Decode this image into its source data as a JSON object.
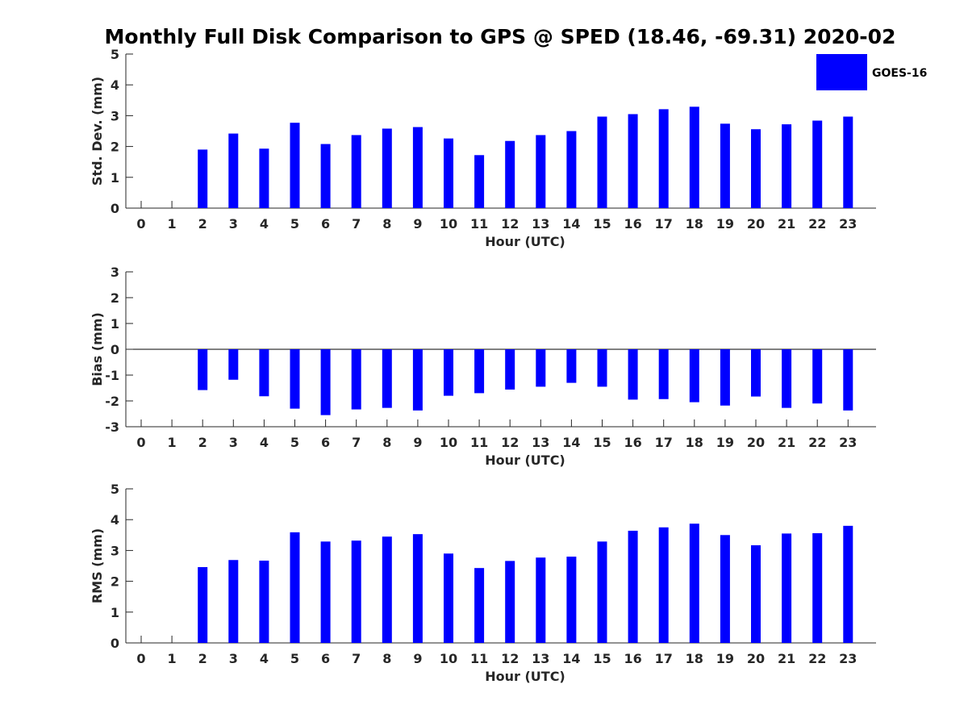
{
  "title": "Monthly Full Disk Comparison to GPS @ SPED (18.46, -69.31) 2020-02",
  "colors": {
    "bar": "#0000ff"
  },
  "legend": {
    "label": "GOES-16"
  },
  "chart_data": [
    {
      "type": "bar",
      "name": "stddev",
      "ylabel": "Std. Dev. (mm)",
      "xlabel": "Hour (UTC)",
      "categories": [
        "0",
        "1",
        "2",
        "3",
        "4",
        "5",
        "6",
        "7",
        "8",
        "9",
        "10",
        "11",
        "12",
        "13",
        "14",
        "15",
        "16",
        "17",
        "18",
        "19",
        "20",
        "21",
        "22",
        "23"
      ],
      "series": [
        {
          "name": "GOES-16",
          "values": [
            null,
            null,
            1.9,
            2.42,
            1.93,
            2.77,
            2.08,
            2.37,
            2.58,
            2.63,
            2.26,
            1.72,
            2.18,
            2.37,
            2.5,
            2.97,
            3.05,
            3.21,
            3.29,
            2.74,
            2.56,
            2.72,
            2.84,
            2.97
          ]
        }
      ],
      "ylim": [
        0,
        5
      ],
      "yticks": [
        0,
        1,
        2,
        3,
        4,
        5
      ],
      "legend": "top-right"
    },
    {
      "type": "bar",
      "name": "bias",
      "ylabel": "Bias (mm)",
      "xlabel": "Hour (UTC)",
      "categories": [
        "0",
        "1",
        "2",
        "3",
        "4",
        "5",
        "6",
        "7",
        "8",
        "9",
        "10",
        "11",
        "12",
        "13",
        "14",
        "15",
        "16",
        "17",
        "18",
        "19",
        "20",
        "21",
        "22",
        "23"
      ],
      "series": [
        {
          "name": "GOES-16",
          "values": [
            null,
            null,
            -1.58,
            -1.18,
            -1.82,
            -2.3,
            -2.55,
            -2.33,
            -2.27,
            -2.37,
            -1.8,
            -1.7,
            -1.56,
            -1.45,
            -1.3,
            -1.45,
            -1.95,
            -1.93,
            -2.05,
            -2.18,
            -1.83,
            -2.27,
            -2.1,
            -2.37
          ]
        }
      ],
      "ylim": [
        -3,
        3
      ],
      "yticks": [
        -3,
        -2,
        -1,
        0,
        1,
        2,
        3
      ]
    },
    {
      "type": "bar",
      "name": "rms",
      "ylabel": "RMS (mm)",
      "xlabel": "Hour (UTC)",
      "categories": [
        "0",
        "1",
        "2",
        "3",
        "4",
        "5",
        "6",
        "7",
        "8",
        "9",
        "10",
        "11",
        "12",
        "13",
        "14",
        "15",
        "16",
        "17",
        "18",
        "19",
        "20",
        "21",
        "22",
        "23"
      ],
      "series": [
        {
          "name": "GOES-16",
          "values": [
            null,
            null,
            2.46,
            2.69,
            2.67,
            3.59,
            3.29,
            3.32,
            3.45,
            3.53,
            2.9,
            2.43,
            2.66,
            2.77,
            2.8,
            3.29,
            3.64,
            3.75,
            3.87,
            3.5,
            3.17,
            3.55,
            3.56,
            3.8
          ]
        }
      ],
      "ylim": [
        0,
        5
      ],
      "yticks": [
        0,
        1,
        2,
        3,
        4,
        5
      ]
    }
  ]
}
